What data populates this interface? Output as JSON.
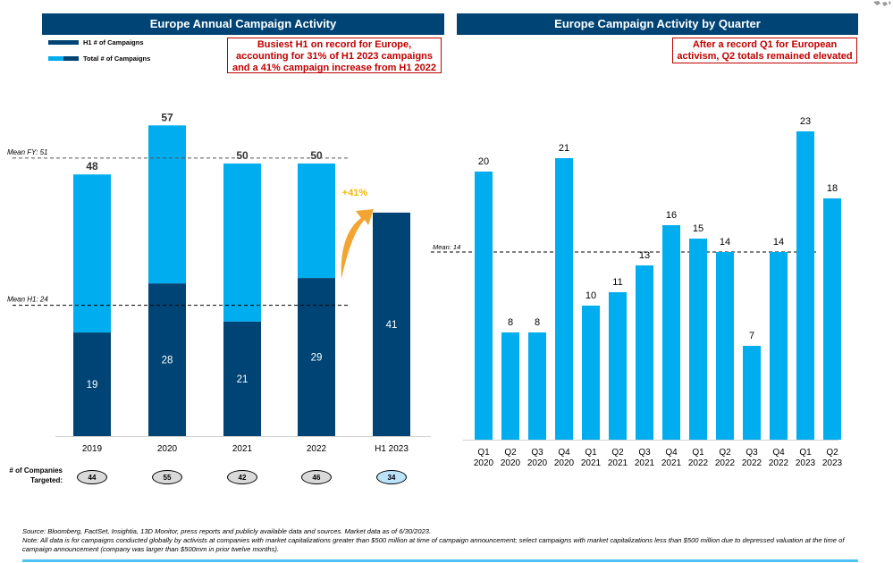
{
  "colors": {
    "header_bg": "#004475",
    "h1_bar": "#004475",
    "total_bar": "#00adef",
    "callout": "#c00000",
    "growth_arrow": "#f2a531",
    "growth_label": "#f5b800",
    "pill_default": "#d9d9d9",
    "pill_highlight": "#bde3fb",
    "footer_rule": "#4fc3f7"
  },
  "left_panel": {
    "title": "Europe Annual Campaign Activity",
    "callout": "Busiest H1 on record for Europe, accounting for 31% of H1 2023 campaigns and a 41% campaign increase from H1 2022",
    "legend": [
      {
        "label": "H1 # of Campaigns"
      },
      {
        "label": "Total # of Campaigns"
      }
    ],
    "companies_label_line1": "# of Companies",
    "companies_label_line2": "Targeted:",
    "companies_targeted": [
      "44",
      "55",
      "42",
      "46",
      "34"
    ],
    "growth_label": "+41%"
  },
  "right_panel": {
    "title": "Europe Campaign Activity by Quarter",
    "callout": "After a record Q1 for European activism, Q2 totals remained elevated"
  },
  "chart_data": [
    {
      "type": "bar",
      "stacked": true,
      "title": "Europe Annual Campaign Activity",
      "categories": [
        "2019",
        "2020",
        "2021",
        "2022",
        "H1 2023"
      ],
      "series": [
        {
          "name": "H1 # of Campaigns",
          "values": [
            19,
            28,
            21,
            29,
            41
          ]
        },
        {
          "name": "Total # of Campaigns",
          "values": [
            48,
            57,
            50,
            50,
            null
          ]
        }
      ],
      "reference_lines": [
        {
          "label": "Mean FY: 51",
          "value": 51
        },
        {
          "label": "Mean H1: 24",
          "value": 24
        }
      ],
      "annotations": [
        "+41%"
      ],
      "xlabel": "",
      "ylabel": "",
      "ylim": [
        0,
        60
      ],
      "grid": false,
      "legend": "top-left"
    },
    {
      "type": "bar",
      "title": "Europe Campaign Activity by Quarter",
      "categories": [
        "Q1 2020",
        "Q2 2020",
        "Q3 2020",
        "Q4 2020",
        "Q1 2021",
        "Q2 2021",
        "Q3 2021",
        "Q4 2021",
        "Q1 2022",
        "Q2 2022",
        "Q3 2022",
        "Q4 2022",
        "Q1 2023",
        "Q2 2023"
      ],
      "category_lines": [
        [
          "Q1",
          "2020"
        ],
        [
          "Q2",
          "2020"
        ],
        [
          "Q3",
          "2020"
        ],
        [
          "Q4",
          "2020"
        ],
        [
          "Q1",
          "2021"
        ],
        [
          "Q2",
          "2021"
        ],
        [
          "Q3",
          "2021"
        ],
        [
          "Q4",
          "2021"
        ],
        [
          "Q1",
          "2022"
        ],
        [
          "Q2",
          "2022"
        ],
        [
          "Q3",
          "2022"
        ],
        [
          "Q4",
          "2022"
        ],
        [
          "Q1",
          "2023"
        ],
        [
          "Q2",
          "2023"
        ]
      ],
      "values": [
        20,
        8,
        8,
        21,
        10,
        11,
        13,
        16,
        15,
        14,
        7,
        14,
        23,
        18
      ],
      "reference_lines": [
        {
          "label": "Mean: 14",
          "value": 14
        }
      ],
      "xlabel": "",
      "ylabel": "",
      "ylim": [
        0,
        24
      ],
      "grid": false
    }
  ],
  "footer": {
    "source": "Source: Bloomberg, FactSet, Insightia, 13D Monitor, press reports and publicly available data and sources. Market data as of 6/30/2023.",
    "note": "Note: All data is for campaigns conducted globally by activists at companies with market capitalizations greater than $500 million at time of campaign announcement; select campaigns with market capitalizations less than $500 million due to depressed valuation at the time of campaign announcement (company was larger than $500mm in prior twelve months)."
  }
}
